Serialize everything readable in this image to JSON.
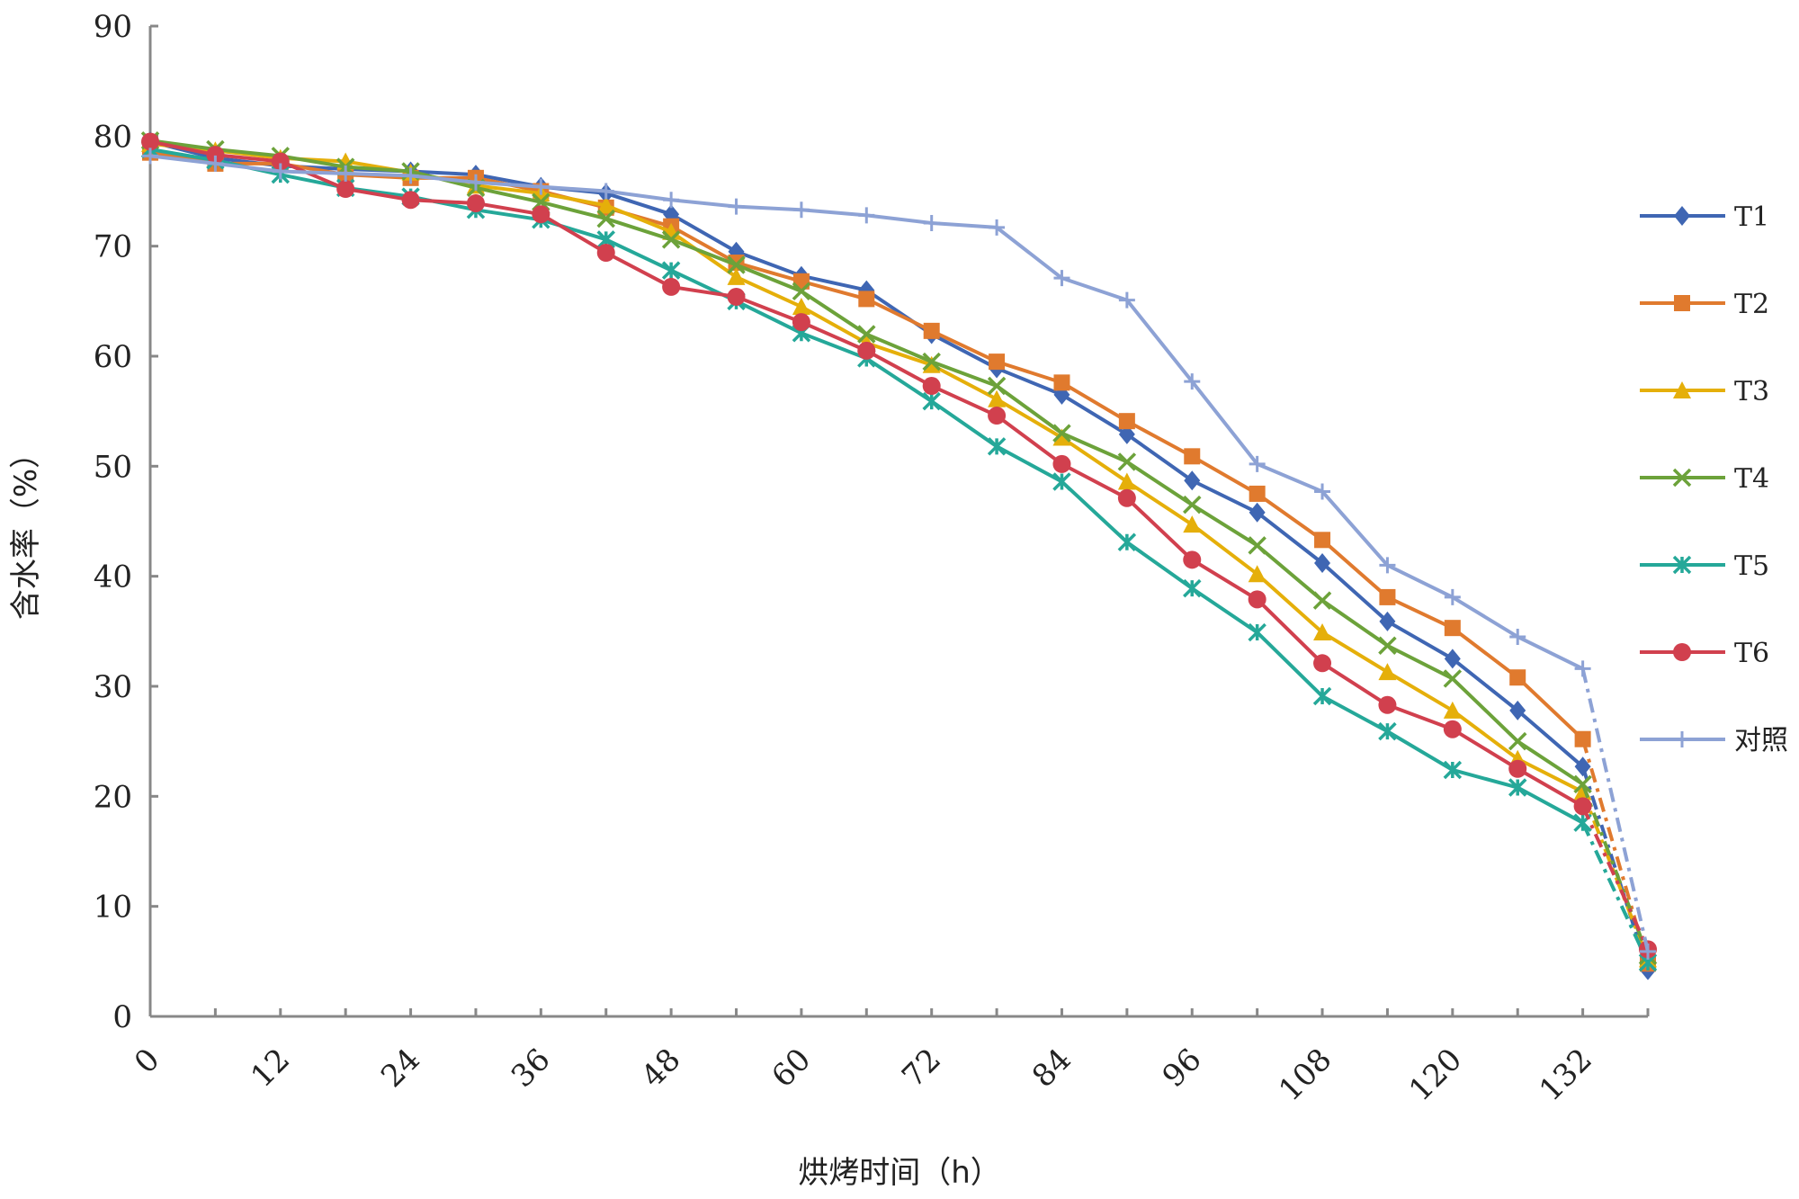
{
  "chart_data": {
    "type": "line",
    "title": "",
    "xlabel": "烘烤时间（h）",
    "ylabel": "含水率（%）",
    "xlim": [
      0,
      138
    ],
    "ylim": [
      0,
      90
    ],
    "yticks": [
      0,
      10,
      20,
      30,
      40,
      50,
      60,
      70,
      80,
      90
    ],
    "xtick_labels": [
      "0",
      "12",
      "24",
      "36",
      "48",
      "60",
      "72",
      "84",
      "96",
      "108",
      "120",
      "132"
    ],
    "xtick_values": [
      0,
      12,
      24,
      36,
      48,
      60,
      72,
      84,
      96,
      108,
      120,
      132
    ],
    "grid": false,
    "legend_position": "right",
    "x": [
      0,
      6,
      12,
      18,
      24,
      30,
      36,
      42,
      48,
      54,
      60,
      66,
      72,
      78,
      84,
      90,
      96,
      102,
      108,
      114,
      120,
      126,
      132,
      138
    ],
    "last_segment_style": "dash-dot",
    "series": [
      {
        "name": "T1",
        "color": "#3F66B3",
        "marker": "diamond",
        "values": [
          79.5,
          78,
          77.3,
          77,
          76.8,
          76.5,
          75.4,
          74.8,
          72.9,
          69.5,
          67.3,
          66,
          62,
          58.9,
          56.5,
          52.9,
          48.7,
          45.8,
          41.2,
          35.9,
          32.5,
          27.8,
          22.7,
          4.2
        ]
      },
      {
        "name": "T2",
        "color": "#E07A2E",
        "marker": "square",
        "values": [
          78.5,
          77.5,
          77.5,
          76.5,
          76.2,
          76.2,
          75,
          73.5,
          71.8,
          68.5,
          66.8,
          65.2,
          62.3,
          59.5,
          57.6,
          54.1,
          50.9,
          47.5,
          43.3,
          38.1,
          35.3,
          30.8,
          25.2,
          4.8
        ]
      },
      {
        "name": "T3",
        "color": "#E5AF0A",
        "marker": "triangle",
        "values": [
          79.3,
          78.7,
          78,
          77.7,
          76.7,
          75.5,
          74.8,
          73.7,
          71.3,
          67.2,
          64.5,
          61.2,
          59.2,
          56.1,
          52.6,
          48.6,
          44.7,
          40.2,
          34.9,
          31.3,
          27.8,
          23.4,
          20.4,
          5.2
        ]
      },
      {
        "name": "T4",
        "color": "#6CA23A",
        "marker": "x",
        "values": [
          79.6,
          78.8,
          78.2,
          77.2,
          76.8,
          75.3,
          74,
          72.5,
          70.6,
          68.3,
          65.9,
          62,
          59.5,
          57.3,
          53,
          50.4,
          46.5,
          42.8,
          37.8,
          33.7,
          30.7,
          25,
          21.1,
          5.5
        ]
      },
      {
        "name": "T5",
        "color": "#25A899",
        "marker": "asterisk",
        "values": [
          78.8,
          77.8,
          76.5,
          75.3,
          74.5,
          73.3,
          72.4,
          70.6,
          67.8,
          65,
          62.1,
          59.8,
          55.9,
          51.8,
          48.6,
          43.1,
          38.9,
          34.9,
          29.1,
          25.9,
          22.4,
          20.8,
          17.6,
          4.9
        ]
      },
      {
        "name": "T6",
        "color": "#D1404E",
        "marker": "circle",
        "values": [
          79.5,
          78.3,
          77.7,
          75.2,
          74.2,
          73.9,
          72.9,
          69.4,
          66.3,
          65.4,
          63.1,
          60.5,
          57.3,
          54.6,
          50.2,
          47.1,
          41.5,
          37.9,
          32.1,
          28.3,
          26.1,
          22.5,
          19.1,
          6.1
        ]
      },
      {
        "name": "对照",
        "color": "#8DA2D5",
        "marker": "plus",
        "values": [
          78.2,
          77.5,
          76.8,
          76.6,
          76.4,
          75.8,
          75.4,
          75,
          74.2,
          73.6,
          73.3,
          72.8,
          72.1,
          71.7,
          67.1,
          65.1,
          57.7,
          50.2,
          47.7,
          41,
          38.1,
          34.5,
          31.6,
          5.9
        ]
      }
    ]
  }
}
